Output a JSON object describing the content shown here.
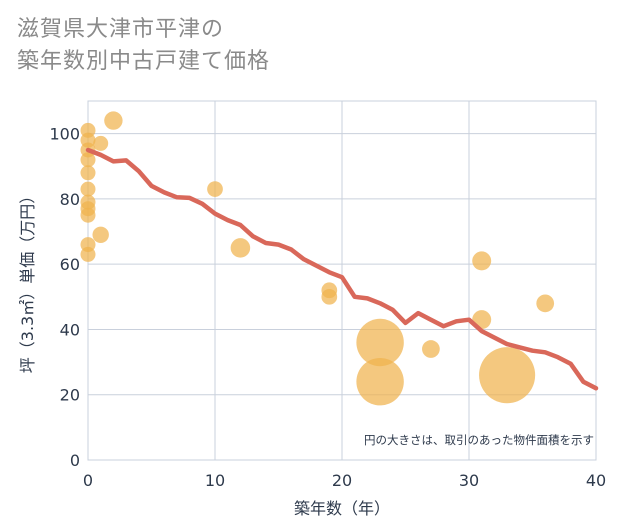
{
  "title": {
    "line1": "滋賀県大津市平津の",
    "line2": "築年数別中古戸建て価格"
  },
  "chart_data": {
    "type": "scatter",
    "xlabel": "築年数（年）",
    "ylabel": "坪（3.3㎡）単価（万円）",
    "xlim": [
      0,
      40
    ],
    "ylim": [
      0,
      110
    ],
    "xticks": [
      0,
      10,
      20,
      30,
      40
    ],
    "yticks": [
      0,
      20,
      40,
      60,
      80,
      100
    ],
    "grid": true,
    "note": "円の大きさは、取引のあった物件面積を示す",
    "colors": {
      "bubble": "#f0b34d",
      "line": "#d9685a",
      "grid": "#c9d0dc",
      "axis_text": "#2e3a4c"
    },
    "bubbles": [
      {
        "x": 0,
        "y": 101,
        "size": 1
      },
      {
        "x": 0,
        "y": 98,
        "size": 1
      },
      {
        "x": 0,
        "y": 95,
        "size": 1
      },
      {
        "x": 0,
        "y": 92,
        "size": 1
      },
      {
        "x": 0,
        "y": 88,
        "size": 1
      },
      {
        "x": 0,
        "y": 83,
        "size": 1
      },
      {
        "x": 0,
        "y": 79,
        "size": 1
      },
      {
        "x": 0,
        "y": 77,
        "size": 1
      },
      {
        "x": 0,
        "y": 75,
        "size": 1
      },
      {
        "x": 0,
        "y": 66,
        "size": 1
      },
      {
        "x": 0,
        "y": 63,
        "size": 1
      },
      {
        "x": 1,
        "y": 97,
        "size": 1
      },
      {
        "x": 1,
        "y": 69,
        "size": 1.2
      },
      {
        "x": 2,
        "y": 104,
        "size": 1.5
      },
      {
        "x": 10,
        "y": 83,
        "size": 1.1
      },
      {
        "x": 12,
        "y": 65,
        "size": 1.7
      },
      {
        "x": 19,
        "y": 52,
        "size": 1.1
      },
      {
        "x": 19,
        "y": 50,
        "size": 1.1
      },
      {
        "x": 23,
        "y": 36,
        "size": 10
      },
      {
        "x": 23,
        "y": 24,
        "size": 10
      },
      {
        "x": 27,
        "y": 34,
        "size": 1.4
      },
      {
        "x": 31,
        "y": 61,
        "size": 1.6
      },
      {
        "x": 31,
        "y": 43,
        "size": 1.6
      },
      {
        "x": 33,
        "y": 26,
        "size": 14
      },
      {
        "x": 36,
        "y": 48,
        "size": 1.4
      }
    ],
    "trend": {
      "x": [
        0,
        1,
        2,
        3,
        4,
        5,
        6,
        7,
        8,
        9,
        10,
        11,
        12,
        13,
        14,
        15,
        16,
        17,
        18,
        19,
        20,
        21,
        22,
        23,
        24,
        25,
        26,
        27,
        28,
        29,
        30,
        31,
        32,
        33,
        34,
        35,
        36,
        37,
        38,
        39,
        40
      ],
      "y": [
        95,
        93.5,
        91.5,
        91.8,
        88.5,
        84,
        82,
        80.5,
        80.3,
        78.5,
        75.5,
        73.5,
        72,
        68.5,
        66.5,
        66,
        64.5,
        61.5,
        59.5,
        57.5,
        56,
        50,
        49.5,
        48,
        46,
        42,
        45,
        43,
        41,
        42.5,
        43,
        39.5,
        37.5,
        35.5,
        34.5,
        33.5,
        33,
        31.5,
        29.5,
        24,
        22
      ]
    }
  }
}
